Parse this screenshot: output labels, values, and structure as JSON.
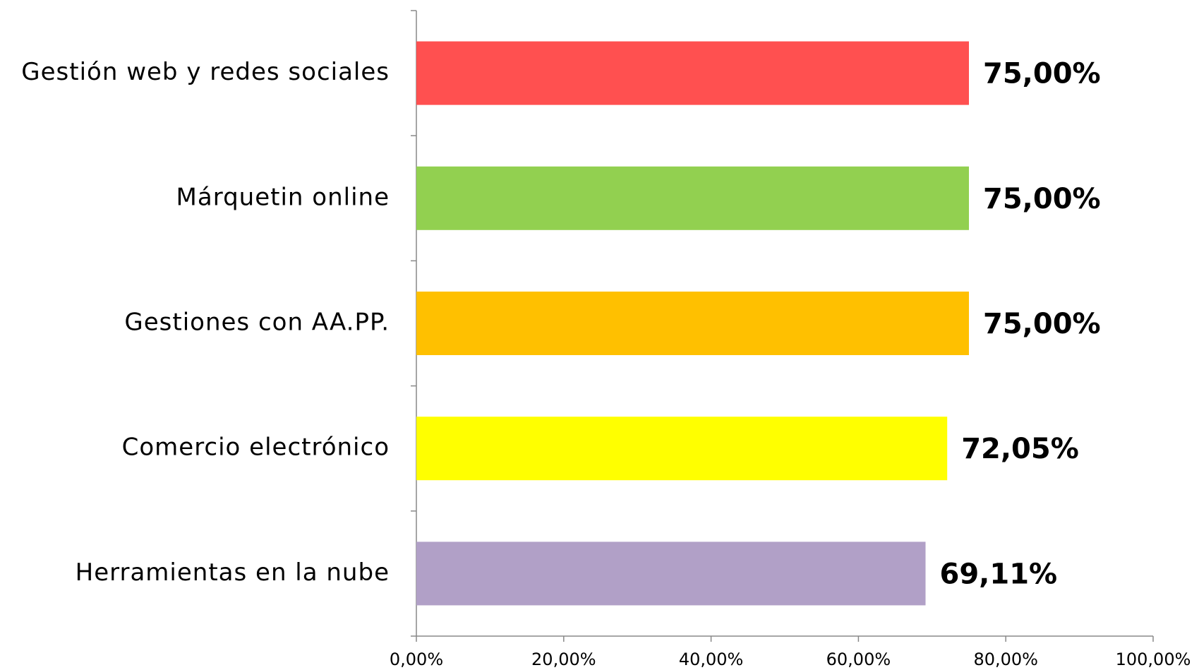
{
  "chart_data": {
    "type": "bar",
    "orientation": "horizontal",
    "categories": [
      "Gestión web y redes sociales",
      "Márquetin online",
      "Gestiones con AA.PP.",
      "Comercio electrónico",
      "Herramientas en la nube"
    ],
    "values": [
      75,
      75,
      75,
      72.05,
      69.11
    ],
    "value_labels": [
      "75,00%",
      "75,00%",
      "75,00%",
      "72,05%",
      "69,11%"
    ],
    "colors": [
      "#ff5050",
      "#92d050",
      "#ffc000",
      "#ffff00",
      "#b1a0c7"
    ],
    "xlim": [
      0,
      100
    ],
    "xticks": [
      {
        "value": 0,
        "label": "0,00%"
      },
      {
        "value": 20,
        "label": "20,00%"
      },
      {
        "value": 40,
        "label": "40,00%"
      },
      {
        "value": 60,
        "label": "60,00%"
      },
      {
        "value": 80,
        "label": "80,00%"
      },
      {
        "value": 100,
        "label": "100,00%"
      }
    ],
    "grid": false
  }
}
